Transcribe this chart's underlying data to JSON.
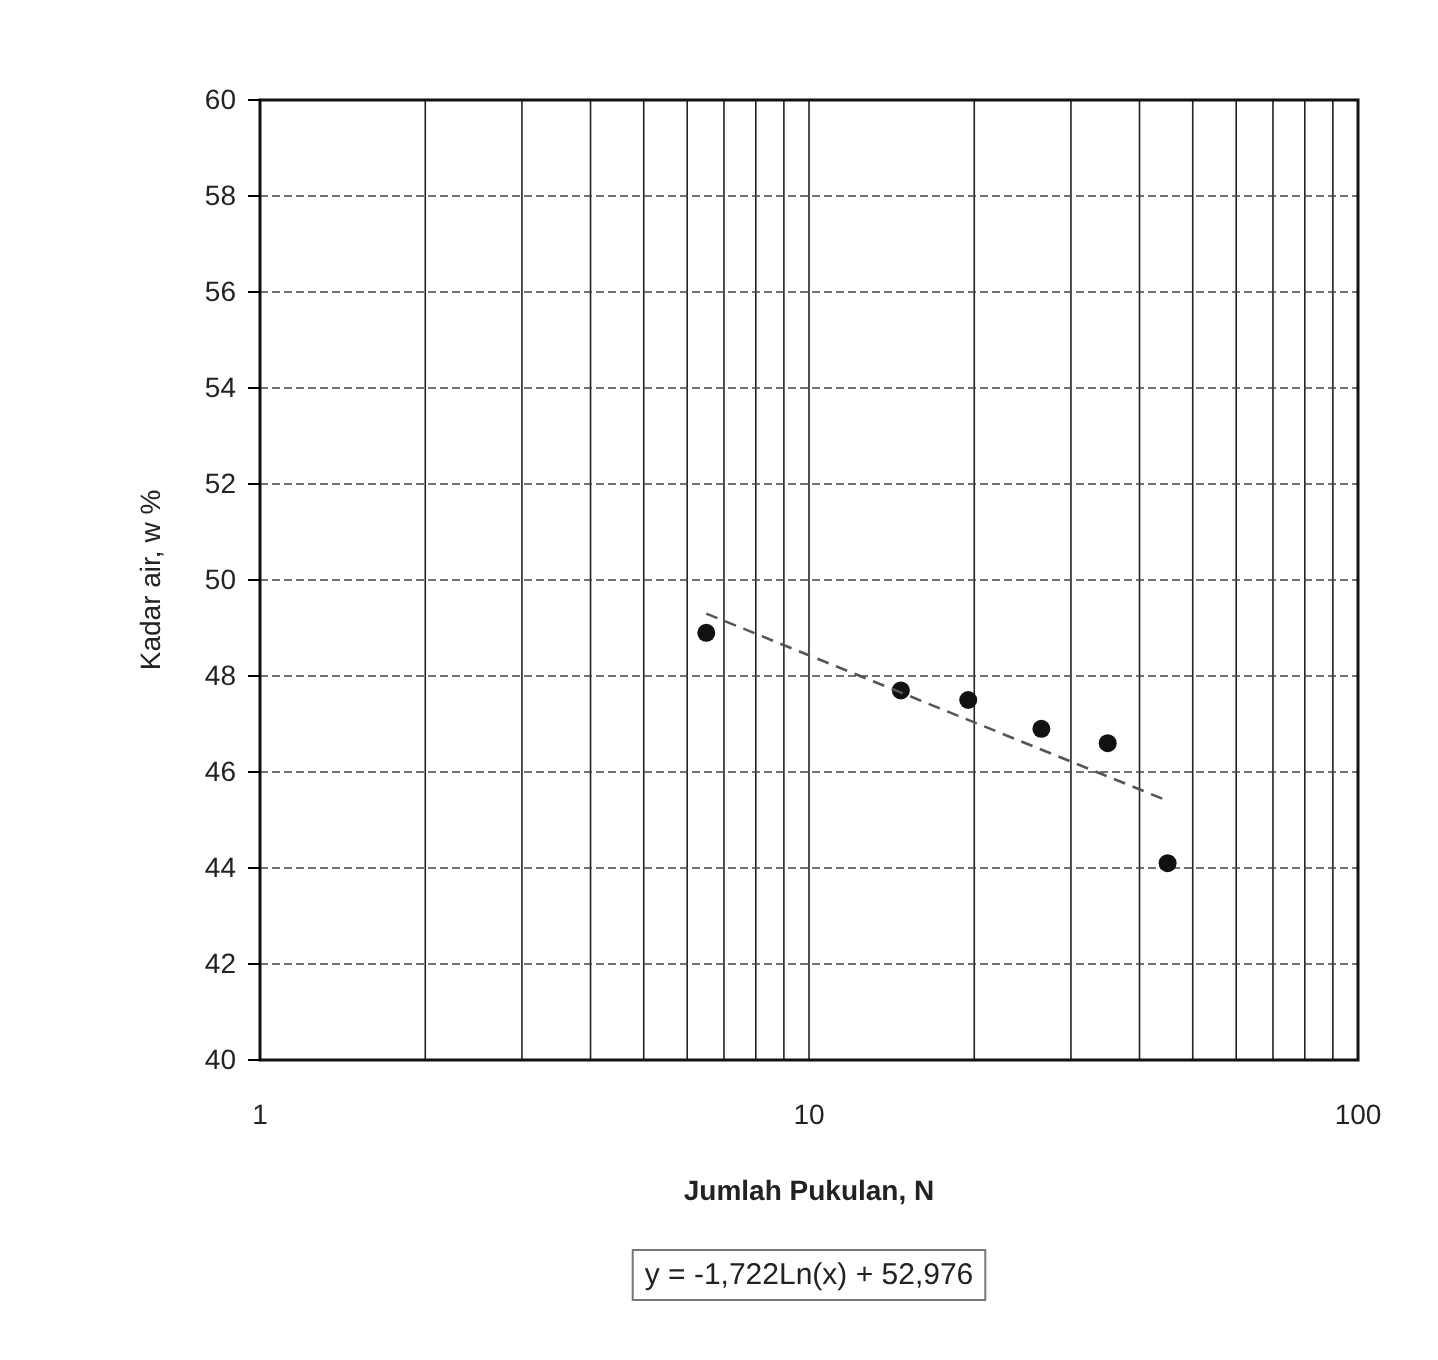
{
  "chart_data": {
    "type": "scatter",
    "xlabel": "Jumlah Pukulan, N",
    "ylabel": "Kadar air, w %",
    "log": "x",
    "grid": true,
    "marker": "circle",
    "xlim": [
      1,
      100
    ],
    "ylim": [
      40,
      60
    ],
    "xticks": [
      1,
      {
        "value": 2,
        "label": null
      },
      {
        "value": 3,
        "label": null
      },
      {
        "value": 4,
        "label": null
      },
      {
        "value": 5,
        "label": null
      },
      {
        "value": 6,
        "label": null
      },
      {
        "value": 7,
        "label": null
      },
      {
        "value": 8,
        "label": null
      },
      {
        "value": 9,
        "label": null
      },
      10,
      {
        "value": 20,
        "label": null
      },
      {
        "value": 30,
        "label": null
      },
      {
        "value": 40,
        "label": null
      },
      {
        "value": 50,
        "label": null
      },
      {
        "value": 60,
        "label": null
      },
      {
        "value": 70,
        "label": null
      },
      {
        "value": 80,
        "label": null
      },
      {
        "value": 90,
        "label": null
      },
      100
    ],
    "yticks": [
      40,
      42,
      44,
      46,
      48,
      50,
      52,
      54,
      56,
      58,
      60
    ],
    "series": [
      {
        "color": "#111111",
        "x": [
          6.5,
          14.7,
          19.5,
          26.5,
          35,
          45
        ],
        "values": [
          48.9,
          47.7,
          47.5,
          46.9,
          46.6,
          44.1
        ]
      },
      {
        "type": "line",
        "color": "#555555",
        "line_style": "dashed",
        "marker": "none",
        "x": [
          6.5,
          45
        ],
        "values": [
          49.3,
          45.4
        ]
      }
    ],
    "annotations": [
      "y = -1,722Ln(x) + 52,976"
    ]
  }
}
